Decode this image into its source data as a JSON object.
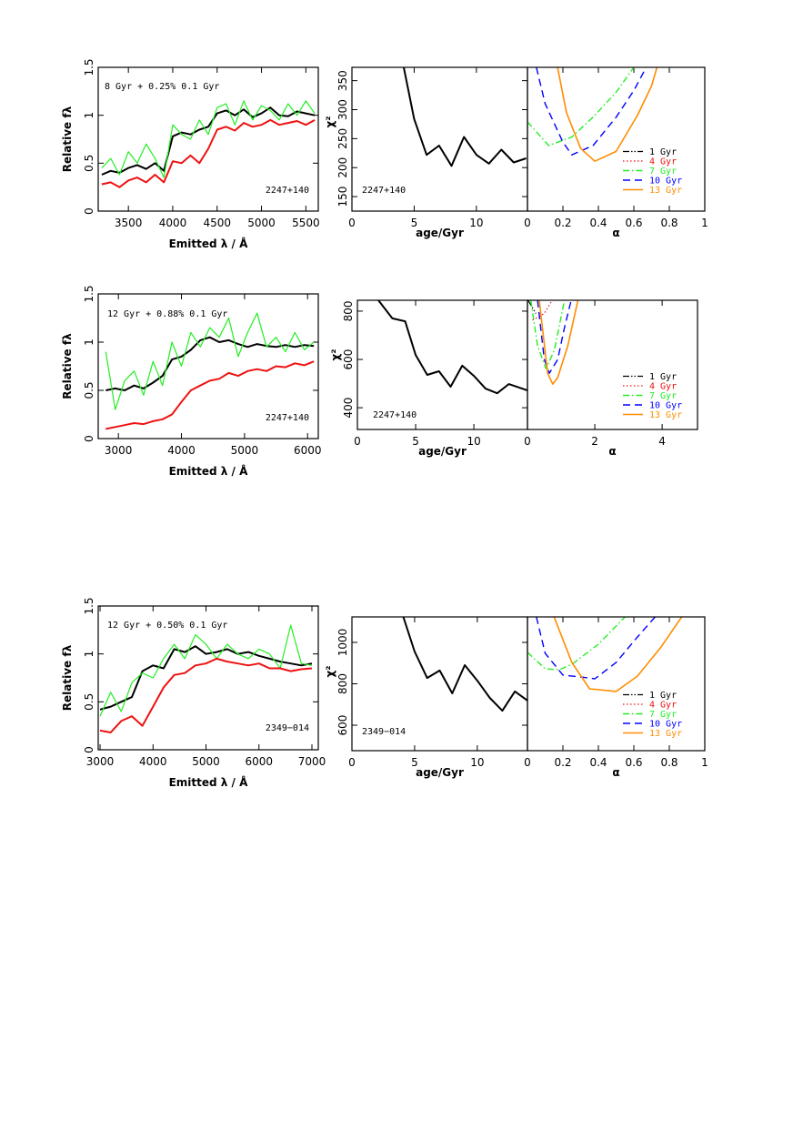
{
  "chart_data": [
    {
      "type": "line",
      "xlabel": "Emitted λ / Å",
      "ylabel": "Relative fλ",
      "annotations": [
        "8 Gyr  + 0.25% 0.1 Gyr",
        "2247+140"
      ],
      "xlim": [
        3160,
        5640
      ],
      "ylim": [
        0,
        1.5
      ],
      "xticks": [
        3500,
        4000,
        4500,
        5000,
        5500
      ],
      "yticks": [
        0,
        0.5,
        1,
        1.5
      ],
      "x": [
        3200,
        3300,
        3400,
        3500,
        3600,
        3700,
        3800,
        3900,
        4000,
        4100,
        4200,
        4300,
        4400,
        4500,
        4600,
        4700,
        4800,
        4900,
        5000,
        5100,
        5200,
        5300,
        5400,
        5500,
        5600
      ],
      "series": [
        {
          "color": "#000000",
          "style": "solid",
          "width": 2,
          "values": [
            0.38,
            0.42,
            0.4,
            0.45,
            0.48,
            0.44,
            0.5,
            0.42,
            0.78,
            0.82,
            0.8,
            0.85,
            0.88,
            1.02,
            1.05,
            1.0,
            1.06,
            0.98,
            1.02,
            1.08,
            1.0,
            0.99,
            1.04,
            1.02,
            1.0
          ]
        },
        {
          "color": "#22ee22",
          "style": "solid",
          "width": 1.2,
          "values": [
            0.45,
            0.55,
            0.38,
            0.62,
            0.5,
            0.7,
            0.55,
            0.35,
            0.9,
            0.8,
            0.75,
            0.95,
            0.8,
            1.08,
            1.12,
            0.9,
            1.15,
            0.95,
            1.1,
            1.05,
            0.95,
            1.12,
            1.0,
            1.15,
            1.02
          ]
        },
        {
          "color": "#ee1111",
          "style": "solid",
          "width": 2,
          "values": [
            0.28,
            0.3,
            0.25,
            0.32,
            0.35,
            0.3,
            0.38,
            0.3,
            0.52,
            0.5,
            0.58,
            0.5,
            0.65,
            0.85,
            0.88,
            0.84,
            0.92,
            0.88,
            0.9,
            0.95,
            0.9,
            0.92,
            0.94,
            0.9,
            0.95
          ]
        }
      ]
    },
    {
      "type": "line",
      "xlabel": "age/Gyr",
      "ylabel": "χ²",
      "annotations": [
        "2247+140"
      ],
      "xlim": [
        0,
        14.1
      ],
      "ylim": [
        125,
        373
      ],
      "xticks": [
        0,
        5,
        10
      ],
      "yticks": [
        150,
        200,
        250,
        300,
        350
      ],
      "series": [
        {
          "color": "#000000",
          "style": "solid",
          "width": 2,
          "x": [
            4,
            5,
            6,
            7,
            8,
            9,
            10,
            11,
            12,
            13,
            14
          ],
          "values": [
            390,
            284,
            222,
            238,
            203,
            253,
            222,
            207,
            231,
            209,
            216
          ]
        }
      ]
    },
    {
      "type": "line",
      "xlabel": "α",
      "legend": "lower right",
      "xlim": [
        0,
        1
      ],
      "ylim": [
        125,
        373
      ],
      "xticks": [
        0,
        0.2,
        0.4,
        0.6,
        0.8,
        1
      ],
      "series": [
        {
          "name": "1 Gyr",
          "color": "#000000",
          "style": "dash-dot-dot",
          "width": 1.2,
          "x": [],
          "values": []
        },
        {
          "name": "4 Gyr",
          "color": "#ee1111",
          "style": "dotted",
          "width": 1.2,
          "x": [],
          "values": []
        },
        {
          "name": "7 Gyr",
          "color": "#22ee22",
          "style": "dash-dot",
          "width": 1.4,
          "x": [
            0,
            0.12,
            0.25,
            0.37,
            0.5,
            0.6
          ],
          "values": [
            279,
            238,
            253,
            287,
            330,
            373
          ]
        },
        {
          "name": "10 Gyr",
          "color": "#0000ff",
          "style": "dashed",
          "width": 1.4,
          "x": [
            0.05,
            0.1,
            0.2,
            0.25,
            0.37,
            0.5,
            0.6,
            0.67
          ],
          "values": [
            373,
            310,
            244,
            222,
            238,
            287,
            333,
            373
          ]
        },
        {
          "name": "13 Gyr",
          "color": "#ff8c00",
          "style": "solid",
          "width": 1.6,
          "x": [
            0.17,
            0.22,
            0.3,
            0.38,
            0.5,
            0.62,
            0.7,
            0.73
          ],
          "values": [
            373,
            295,
            233,
            211,
            228,
            290,
            341,
            373
          ]
        }
      ]
    },
    {
      "type": "line",
      "xlabel": "Emitted λ / Å",
      "ylabel": "Relative fλ",
      "annotations": [
        "12 Gyr + 0.88% 0.1 Gyr",
        "2247+140"
      ],
      "xlim": [
        2680,
        6170
      ],
      "ylim": [
        0,
        1.5
      ],
      "xticks": [
        3000,
        4000,
        5000,
        6000
      ],
      "yticks": [
        0,
        0.5,
        1,
        1.5
      ],
      "x": [
        2800,
        2950,
        3100,
        3250,
        3400,
        3550,
        3700,
        3850,
        4000,
        4150,
        4300,
        4450,
        4600,
        4750,
        4900,
        5050,
        5200,
        5350,
        5500,
        5650,
        5800,
        5950,
        6100
      ],
      "series": [
        {
          "color": "#000000",
          "style": "solid",
          "width": 2,
          "values": [
            0.5,
            0.52,
            0.5,
            0.55,
            0.52,
            0.58,
            0.65,
            0.82,
            0.85,
            0.92,
            1.02,
            1.05,
            1.0,
            1.02,
            0.98,
            0.95,
            0.98,
            0.96,
            0.95,
            0.97,
            0.95,
            0.97,
            0.96
          ]
        },
        {
          "color": "#22ee22",
          "style": "solid",
          "width": 1.2,
          "values": [
            0.9,
            0.3,
            0.6,
            0.7,
            0.45,
            0.8,
            0.55,
            1.0,
            0.75,
            1.1,
            0.95,
            1.15,
            1.05,
            1.25,
            0.85,
            1.1,
            1.3,
            0.95,
            1.05,
            0.9,
            1.1,
            0.92,
            1.0
          ]
        },
        {
          "color": "#ee1111",
          "style": "solid",
          "width": 2,
          "values": [
            0.1,
            0.12,
            0.14,
            0.16,
            0.15,
            0.18,
            0.2,
            0.25,
            0.38,
            0.5,
            0.55,
            0.6,
            0.62,
            0.68,
            0.65,
            0.7,
            0.72,
            0.7,
            0.75,
            0.74,
            0.78,
            0.76,
            0.8
          ]
        }
      ]
    },
    {
      "type": "line",
      "xlabel": "age/Gyr",
      "ylabel": "χ²",
      "annotations": [
        "2247+140"
      ],
      "xlim": [
        0,
        14.6
      ],
      "ylim": [
        310,
        845
      ],
      "xticks": [
        0,
        5,
        10
      ],
      "yticks": [
        400,
        600,
        800
      ],
      "series": [
        {
          "color": "#000000",
          "style": "solid",
          "width": 2,
          "x": [
            1.8,
            3,
            4.1,
            5,
            6,
            7,
            8,
            9,
            10,
            11,
            12,
            13,
            14.6
          ],
          "values": [
            845,
            770,
            758,
            619,
            536,
            551,
            487,
            574,
            532,
            479,
            460,
            498,
            472
          ]
        }
      ]
    },
    {
      "type": "line",
      "xlabel": "α",
      "legend": "lower right",
      "xlim": [
        0,
        5.05
      ],
      "ylim": [
        310,
        845
      ],
      "xticks": [
        0,
        2,
        4
      ],
      "series": [
        {
          "name": "1 Gyr",
          "color": "#000000",
          "style": "dash-dot-dot",
          "width": 1.2,
          "x": [
            0.02,
            0.25
          ],
          "values": [
            845,
            790
          ]
        },
        {
          "name": "4 Gyr",
          "color": "#ee1111",
          "style": "dotted",
          "width": 1.2,
          "x": [
            0.15,
            0.5,
            0.7
          ],
          "values": [
            763,
            790,
            837
          ]
        },
        {
          "name": "7 Gyr",
          "color": "#22ee22",
          "style": "dash-dot",
          "width": 1.4,
          "x": [
            0.1,
            0.3,
            0.55,
            0.8,
            1.1
          ],
          "values": [
            845,
            657,
            562,
            638,
            845
          ]
        },
        {
          "name": "10 Gyr",
          "color": "#0000ff",
          "style": "dashed",
          "width": 1.4,
          "x": [
            0.3,
            0.5,
            0.65,
            0.9,
            1.1,
            1.3
          ],
          "values": [
            845,
            600,
            543,
            600,
            732,
            845
          ]
        },
        {
          "name": "13 Gyr",
          "color": "#ff8c00",
          "style": "solid",
          "width": 1.6,
          "x": [
            0.35,
            0.6,
            0.75,
            0.9,
            1.2,
            1.5
          ],
          "values": [
            845,
            543,
            498,
            525,
            657,
            845
          ]
        }
      ]
    },
    {
      "type": "line",
      "xlabel": "Emitted λ / Å",
      "ylabel": "Relative fλ",
      "annotations": [
        "12 Gyr + 0.50% 0.1 Gyr",
        "2349−014"
      ],
      "xlim": [
        2965,
        7120
      ],
      "ylim": [
        0,
        1.5
      ],
      "xticks": [
        3000,
        4000,
        5000,
        6000,
        7000
      ],
      "yticks": [
        0,
        0.5,
        1,
        1.5
      ],
      "x": [
        3000,
        3200,
        3400,
        3600,
        3800,
        4000,
        4200,
        4400,
        4600,
        4800,
        5000,
        5200,
        5400,
        5600,
        5800,
        6000,
        6200,
        6400,
        6600,
        6800,
        7000
      ],
      "series": [
        {
          "color": "#000000",
          "style": "solid",
          "width": 2,
          "values": [
            0.42,
            0.45,
            0.5,
            0.55,
            0.82,
            0.88,
            0.85,
            1.05,
            1.02,
            1.08,
            1.0,
            1.02,
            1.05,
            1.0,
            1.02,
            0.98,
            0.95,
            0.92,
            0.9,
            0.88,
            0.9
          ]
        },
        {
          "color": "#22ee22",
          "style": "solid",
          "width": 1.2,
          "values": [
            0.35,
            0.6,
            0.4,
            0.7,
            0.8,
            0.75,
            0.95,
            1.1,
            0.95,
            1.2,
            1.1,
            0.95,
            1.1,
            1.0,
            0.95,
            1.05,
            1.0,
            0.85,
            1.3,
            0.9,
            0.88
          ]
        },
        {
          "color": "#ee1111",
          "style": "solid",
          "width": 2,
          "values": [
            0.2,
            0.18,
            0.3,
            0.35,
            0.25,
            0.45,
            0.65,
            0.78,
            0.8,
            0.88,
            0.9,
            0.95,
            0.92,
            0.9,
            0.88,
            0.9,
            0.85,
            0.85,
            0.82,
            0.84,
            0.85
          ]
        }
      ]
    },
    {
      "type": "line",
      "xlabel": "age/Gyr",
      "ylabel": "χ²",
      "annotations": [
        "2349−014"
      ],
      "xlim": [
        0,
        14
      ],
      "ylim": [
        477,
        1123
      ],
      "xticks": [
        0,
        5,
        10
      ],
      "yticks": [
        600,
        800,
        1000
      ],
      "series": [
        {
          "color": "#000000",
          "style": "solid",
          "width": 2,
          "x": [
            4.1,
            5,
            6,
            7,
            8,
            9,
            10,
            11,
            12,
            13,
            14
          ],
          "values": [
            1123,
            956,
            828,
            864,
            754,
            890,
            815,
            732,
            670,
            763,
            719
          ]
        }
      ]
    },
    {
      "type": "line",
      "xlabel": "α",
      "legend": "lower right",
      "xlim": [
        0,
        1
      ],
      "ylim": [
        477,
        1123
      ],
      "xticks": [
        0,
        0.2,
        0.4,
        0.6,
        0.8,
        1
      ],
      "series": [
        {
          "name": "1 Gyr",
          "color": "#000000",
          "style": "dash-dot-dot",
          "width": 1.2,
          "x": [],
          "values": []
        },
        {
          "name": "4 Gyr",
          "color": "#ee1111",
          "style": "dotted",
          "width": 1.2,
          "x": [],
          "values": []
        },
        {
          "name": "7 Gyr",
          "color": "#22ee22",
          "style": "dash-dot",
          "width": 1.4,
          "x": [
            0,
            0.1,
            0.18,
            0.25,
            0.4,
            0.55
          ],
          "values": [
            952,
            872,
            868,
            894,
            991,
            1123
          ]
        },
        {
          "name": "10 Gyr",
          "color": "#0000ff",
          "style": "dashed",
          "width": 1.4,
          "x": [
            0.05,
            0.1,
            0.2,
            0.3,
            0.38,
            0.5,
            0.62,
            0.72
          ],
          "values": [
            1123,
            947,
            842,
            833,
            824,
            903,
            1026,
            1123
          ]
        },
        {
          "name": "13 Gyr",
          "color": "#ff8c00",
          "style": "solid",
          "width": 1.6,
          "x": [
            0.15,
            0.25,
            0.35,
            0.5,
            0.62,
            0.75,
            0.87
          ],
          "values": [
            1123,
            903,
            776,
            763,
            837,
            974,
            1123
          ]
        }
      ]
    }
  ]
}
